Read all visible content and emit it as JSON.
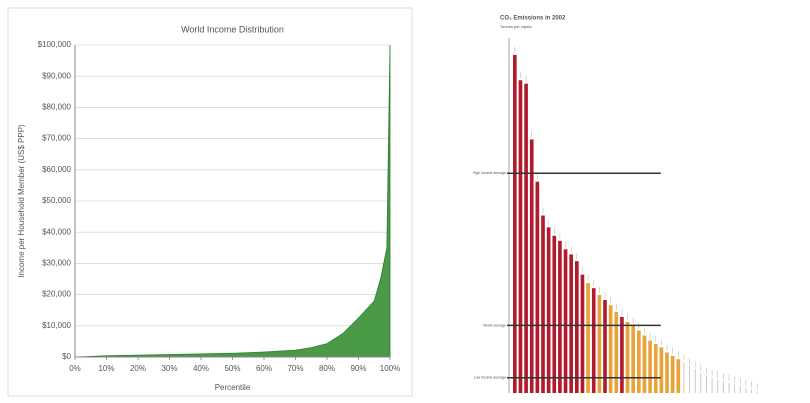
{
  "chart_data": [
    {
      "type": "area",
      "title": "World Income Distribution",
      "x_label": "Percentile",
      "y_label": "Income per Household Member (US$ PPP)",
      "x": [
        0,
        10,
        20,
        30,
        40,
        50,
        60,
        70,
        75,
        80,
        85,
        90,
        95,
        97,
        99,
        100
      ],
      "values": [
        0,
        400,
        600,
        800,
        1000,
        1200,
        1600,
        2200,
        3000,
        4300,
        7500,
        12500,
        18000,
        25000,
        35000,
        100000
      ],
      "color": "#4a9a48",
      "xlim": [
        0,
        100
      ],
      "ylim": [
        0,
        100000
      ],
      "xticks": [
        {
          "value": 0,
          "label": "0%"
        },
        {
          "value": 10,
          "label": "10%"
        },
        {
          "value": 20,
          "label": "20%"
        },
        {
          "value": 30,
          "label": "30%"
        },
        {
          "value": 40,
          "label": "40%"
        },
        {
          "value": 50,
          "label": "50%"
        },
        {
          "value": 60,
          "label": "60%"
        },
        {
          "value": 70,
          "label": "70%"
        },
        {
          "value": 80,
          "label": "80%"
        },
        {
          "value": 90,
          "label": "90%"
        },
        {
          "value": 100,
          "label": "100%"
        }
      ],
      "yticks": [
        {
          "value": 0,
          "label": "$0"
        },
        {
          "value": 10000,
          "label": "$10,000"
        },
        {
          "value": 20000,
          "label": "$20,000"
        },
        {
          "value": 30000,
          "label": "$30,000"
        },
        {
          "value": 40000,
          "label": "$40,000"
        },
        {
          "value": 50000,
          "label": "$50,000"
        },
        {
          "value": 60000,
          "label": "$60,000"
        },
        {
          "value": 70000,
          "label": "$70,000"
        },
        {
          "value": 80000,
          "label": "$80,000"
        },
        {
          "value": 90000,
          "label": "$90,000"
        },
        {
          "value": 100000,
          "label": "$100,000"
        }
      ],
      "grid": true
    },
    {
      "type": "bar",
      "title": "CO₂ Emissions in 2002",
      "y_label": "Tonnes per capita",
      "categories": [
        null,
        null,
        null,
        null,
        null,
        null,
        null,
        null,
        null,
        null,
        null,
        null,
        null,
        null,
        null,
        null,
        null,
        null,
        null,
        null,
        null,
        null,
        null,
        null,
        null,
        null,
        null,
        null,
        null,
        null,
        null,
        null,
        null,
        null,
        null,
        null,
        null,
        null,
        null,
        null,
        null,
        null,
        null,
        null
      ],
      "values": [
        20,
        18.5,
        18.3,
        15,
        12.5,
        10.5,
        9.8,
        9.3,
        9,
        8.5,
        8.2,
        7.8,
        7,
        6.5,
        6.2,
        5.8,
        5.5,
        5.2,
        4.8,
        4.5,
        4.2,
        4,
        3.7,
        3.4,
        3.1,
        2.9,
        2.7,
        2.4,
        2.2,
        2,
        1.8,
        1.6,
        1.4,
        1.2,
        1,
        0.9,
        0.8,
        0.7,
        0.6,
        0.5,
        0.4,
        0.3,
        0.2,
        0.1
      ],
      "colors": [
        "#b01c2e",
        "#b01c2e",
        "#b01c2e",
        "#b01c2e",
        "#b01c2e",
        "#b01c2e",
        "#b01c2e",
        "#b01c2e",
        "#b01c2e",
        "#b01c2e",
        "#b01c2e",
        "#b01c2e",
        "#b01c2e",
        "#e8a33a",
        "#b01c2e",
        "#e8a33a",
        "#b01c2e",
        "#e8a33a",
        "#e8a33a",
        "#b01c2e",
        "#e8a33a",
        "#e8a33a",
        "#e8a33a",
        "#e8a33a",
        "#e8a33a",
        "#e8a33a",
        "#e8a33a",
        "#e8a33a",
        "#e8a33a",
        "#e8a33a",
        "#bbbbbb",
        "#bbbbbb",
        "#bbbbbb",
        "#bbbbbb",
        "#bbbbbb",
        "#bbbbbb",
        "#bbbbbb",
        "#bbbbbb",
        "#bbbbbb",
        "#bbbbbb",
        "#bbbbbb",
        "#bbbbbb",
        "#bbbbbb",
        "#bbbbbb"
      ],
      "ylim": [
        0,
        21
      ],
      "reference_lines": [
        {
          "label": "High income average",
          "value": 13
        },
        {
          "label": "World average",
          "value": 4
        },
        {
          "label": "Low income average",
          "value": 0.9
        }
      ]
    }
  ]
}
